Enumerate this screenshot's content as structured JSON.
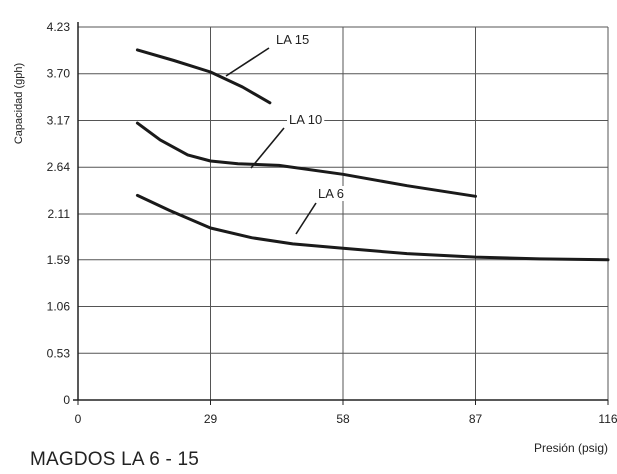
{
  "footer": {
    "title": "MAGDOS LA 6 - 15"
  },
  "chart_data": {
    "type": "line",
    "title": "",
    "xlabel": "Presión (psig)",
    "ylabel": "Capacidad (gph)",
    "xlim": [
      0,
      116
    ],
    "ylim": [
      0,
      4.23
    ],
    "x_ticks": [
      "0",
      "29",
      "58",
      "87",
      "116"
    ],
    "y_ticks": [
      "0",
      "0.53",
      "1.06",
      "1.59",
      "2.11",
      "2.64",
      "3.17",
      "3.70",
      "4.23"
    ],
    "grid": true,
    "legend": "inline labels with leader lines",
    "line_color": "#1a1a1a",
    "grid_color": "#555555",
    "series": [
      {
        "name": "LA 15",
        "x": [
          13,
          21,
          29,
          36,
          42
        ],
        "y": [
          3.97,
          3.85,
          3.72,
          3.55,
          3.37
        ]
      },
      {
        "name": "LA 10",
        "x": [
          13,
          18,
          24,
          29,
          35,
          44,
          58,
          72,
          87
        ],
        "y": [
          3.14,
          2.95,
          2.78,
          2.71,
          2.68,
          2.66,
          2.56,
          2.43,
          2.31
        ]
      },
      {
        "name": "LA 6",
        "x": [
          13,
          20,
          29,
          38,
          47,
          58,
          72,
          87,
          101,
          116
        ],
        "y": [
          2.32,
          2.15,
          1.95,
          1.84,
          1.77,
          1.72,
          1.66,
          1.62,
          1.6,
          1.59
        ]
      }
    ]
  }
}
